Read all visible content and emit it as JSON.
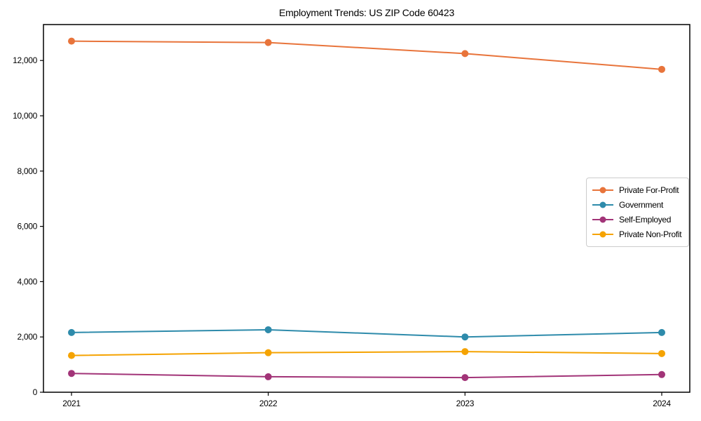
{
  "title": "Employment Trends: US ZIP Code 60423",
  "colors": {
    "background": "#ffffff",
    "axis": "#000000",
    "tick_text": "#000000",
    "legend_border": "#cccccc",
    "series_orange": "#e8743b",
    "series_teal": "#2e8bab",
    "series_purple": "#a23478",
    "series_amber": "#f5a302"
  },
  "chart_data": {
    "type": "line",
    "title": "Employment Trends: US ZIP Code 60423",
    "xlabel": "",
    "ylabel": "",
    "x": [
      2021,
      2022,
      2023,
      2024
    ],
    "x_tick_labels": [
      "2021",
      "2022",
      "2023",
      "2024"
    ],
    "y_ticks": [
      0,
      2000,
      4000,
      6000,
      8000,
      10000,
      12000
    ],
    "y_tick_labels": [
      "0",
      "2,000",
      "4,000",
      "6,000",
      "8,000",
      "10,000",
      "12,000"
    ],
    "ylim": [
      0,
      13300
    ],
    "grid": false,
    "legend_position": "center-right",
    "marker": "circle",
    "series": [
      {
        "name": "Private For-Profit",
        "color": "#e8743b",
        "values": [
          12700,
          12650,
          12250,
          11680
        ]
      },
      {
        "name": "Government",
        "color": "#2e8bab",
        "values": [
          2160,
          2260,
          2000,
          2160
        ]
      },
      {
        "name": "Self-Employed",
        "color": "#a23478",
        "values": [
          680,
          560,
          530,
          640
        ]
      },
      {
        "name": "Private Non-Profit",
        "color": "#f5a302",
        "values": [
          1330,
          1430,
          1470,
          1400
        ]
      }
    ]
  }
}
